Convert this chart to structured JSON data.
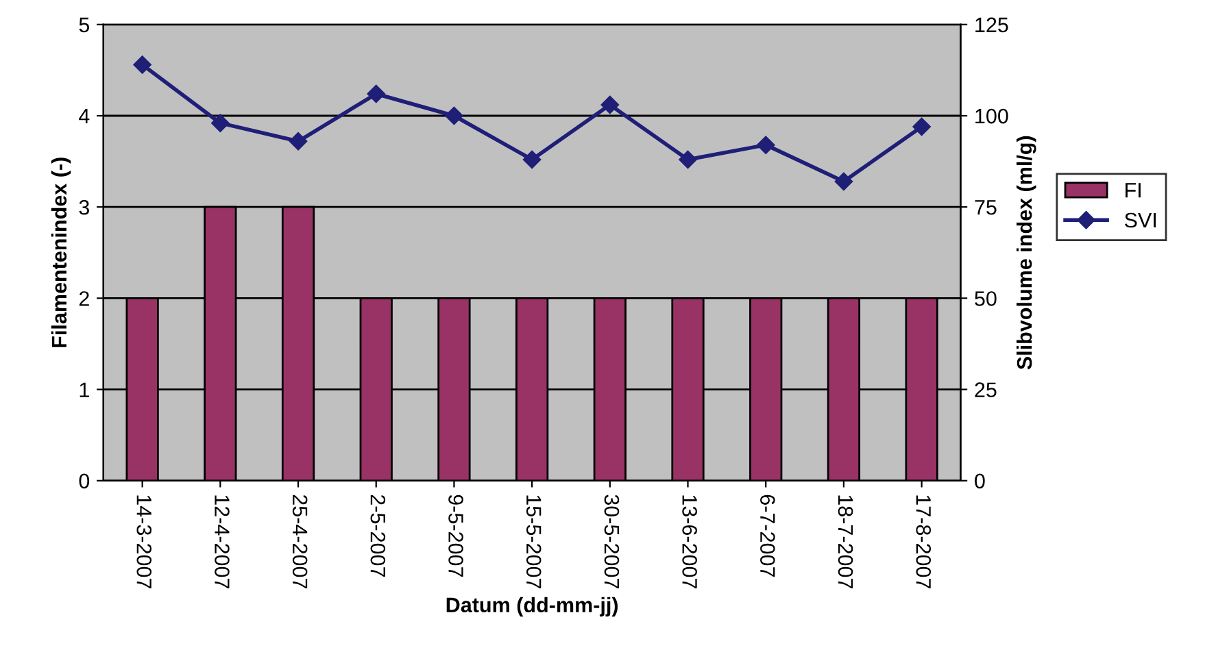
{
  "chart_data": {
    "type": "bar",
    "xlabel": "Datum (dd-mm-jj)",
    "ylabel": "Filamentenindex (-)",
    "y2label": "Slibvolume index (ml/g)",
    "categories": [
      "14-3-2007",
      "12-4-2007",
      "25-4-2007",
      "2-5-2007",
      "9-5-2007",
      "15-5-2007",
      "30-5-2007",
      "13-6-2007",
      "6-7-2007",
      "18-7-2007",
      "17-8-2007"
    ],
    "series": [
      {
        "name": "FI",
        "color": "#993366",
        "values": [
          2,
          3,
          3,
          2,
          2,
          2,
          2,
          2,
          2,
          2,
          2
        ]
      },
      {
        "name": "SVI",
        "type": "line",
        "axis": "y2",
        "color": "#1f1f78",
        "marker": "diamond",
        "values": [
          114,
          98,
          93,
          106,
          100,
          88,
          103,
          88,
          92,
          82,
          97
        ]
      }
    ],
    "ylim": [
      0,
      5
    ],
    "yticks": [
      0,
      1,
      2,
      3,
      4,
      5
    ],
    "y2lim": [
      0,
      125
    ],
    "y2ticks": [
      0,
      25,
      50,
      75,
      100,
      125
    ],
    "grid": "y",
    "legend": "right"
  }
}
